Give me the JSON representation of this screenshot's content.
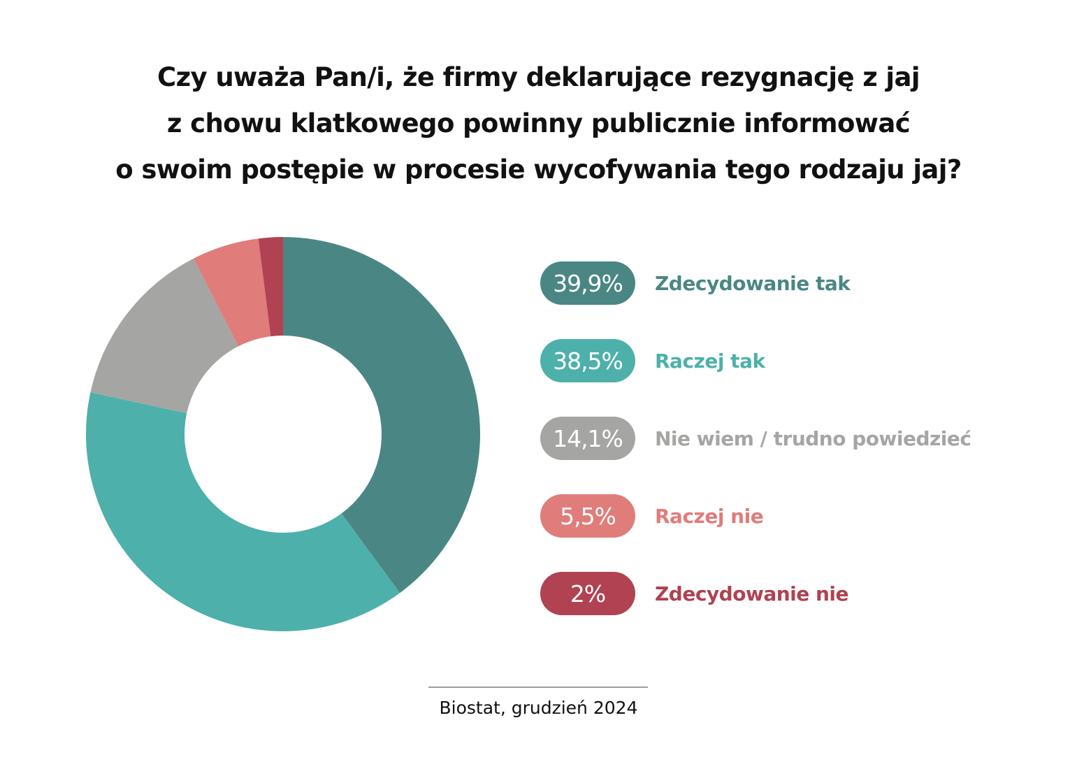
{
  "title_lines": [
    "Czy uważa Pan/i, że firmy deklarujące rezygnację z jaj",
    "z chowu klatkowego powinny publicznie informować",
    "o swoim postępie w procesie wycofywania tego rodzaju jaj?"
  ],
  "source": "Biostat, grudzień 2024",
  "chart_data": {
    "type": "pie",
    "donut": true,
    "title": "Czy uważa Pan/i, że firmy deklarujące rezygnację z jaj z chowu klatkowego powinny publicznie informować o swoim postępie w procesie wycofywania tego rodzaju jaj?",
    "categories": [
      "Zdecydowanie tak",
      "Raczej tak",
      "Nie wiem / trudno powiedzieć",
      "Raczej nie",
      "Zdecydowanie nie"
    ],
    "values": [
      39.9,
      38.5,
      14.1,
      5.5,
      2
    ],
    "value_labels": [
      "39,9%",
      "38,5%",
      "14,1%",
      "5,5%",
      "2%"
    ],
    "colors": [
      "#4a8784",
      "#4db0aa",
      "#a5a5a4",
      "#e07c7a",
      "#b04252"
    ],
    "legend": "right"
  }
}
